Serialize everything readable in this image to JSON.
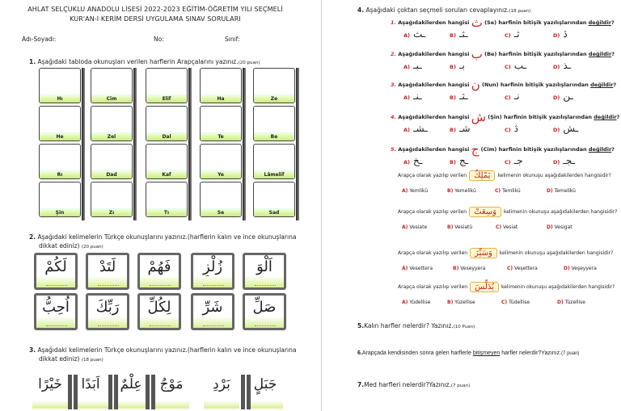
{
  "header": {
    "line1": "AHLAT SELÇUKLU ANADOLU LİSESİ 2022-2023 EĞİTİM-ÖĞRETİM YILI SEÇMELİ",
    "line2": "KUR'AN-I KERİM DERSİ UYGULAMA SINAV SORULARI"
  },
  "student": {
    "name_label": "Adı-Soyadı:",
    "no_label": "No:",
    "class_label": "Sınıf:"
  },
  "q1": {
    "num": "1.",
    "text": "Aşağıdaki tabloda okunuşları verilen harflerin Arapçalarını yazınız.",
    "points": "(20 puan)",
    "columns": [
      [
        "Hı",
        "He",
        "Rı",
        "Şin"
      ],
      [
        "Cim",
        "Zel",
        "Dad",
        "Zı"
      ],
      [
        "Elif",
        "Dal",
        "Kaf",
        "Tı"
      ],
      [
        "Ha",
        "Te",
        "Ye",
        "Se"
      ],
      [
        "Ze",
        "Be",
        "Lâmelif",
        "Sad"
      ]
    ]
  },
  "q2": {
    "num": "2.",
    "text": "Aşağıdaki kelimelerin Türkçe okunuşlarını yazınız.(harflerin kalın ve ince okunuşlarına",
    "text2": "dikkat ediniz)",
    "points": "(20 puan)",
    "row1": [
      "لَكُمْ",
      "لَتَدْ",
      "فَهُمْ",
      "زُلْزِ",
      "اَلْوَ"
    ],
    "row2": [
      "اُحِبُّ",
      "رَبِّكَ",
      "لِكُلِّ",
      "شَرِّ",
      "صَلِّ"
    ]
  },
  "q3": {
    "num": "3.",
    "text": "Aşağıdaki kelimelerin Türkçe okunuşlarını yazınız.(harflerin kalın ve ince okunuşlarına",
    "text2": "dikkat ediniz)",
    "points": "(18 puan)",
    "words": [
      "خَيْرًا",
      "اَبَدًا",
      "عِلْمٌ",
      "مَوْجُ",
      "بَرْدِ",
      "جَبَلٍ"
    ]
  },
  "q4": {
    "num": "4.",
    "text": "Aşağıdaki çoktan seçmeli soruları cevaplayınız.",
    "points": "(18 puan)",
    "sub": [
      {
        "n": "1.",
        "pre": "Aşağıdakilerden hangisi",
        "letter": "ث",
        "post": "(Se) harfinin bitişik yazılışlarından",
        "neg": "değildir",
        "q": "?",
        "opts": [
          [
            "A)",
            "ـث"
          ],
          [
            "B)",
            "ـثـ"
          ],
          [
            "C)",
            "ثـ"
          ],
          [
            "D)",
            "ڎ"
          ]
        ]
      },
      {
        "n": "2.",
        "pre": "Aşağıdakilerden hangisi",
        "letter": "ب",
        "post": "(Be) harfinin bitişik yazılışlarından",
        "neg": "değildir",
        "q": "?",
        "opts": [
          [
            "A)",
            "ـبـ"
          ],
          [
            "B)",
            "بـ"
          ],
          [
            "C)",
            "ـب"
          ],
          [
            "D)",
            "ـذ"
          ]
        ]
      },
      {
        "n": "3.",
        "pre": "Aşağıdakilerden hangisi",
        "letter": "ن",
        "post": "(Nun) harfinin bitişik yazılışlarından",
        "neg": "değildir",
        "q": "?",
        "opts": [
          [
            "A)",
            "ـنـ"
          ],
          [
            "B)",
            "ـثـ"
          ],
          [
            "C)",
            "نـ"
          ],
          [
            "D)",
            "ـن"
          ]
        ]
      },
      {
        "n": "4.",
        "pre": "Aşağıdakilerden hangisi",
        "letter": "ش",
        "post": "(Şin) harfinin bitişik yazılışlarından",
        "neg": "değildir",
        "q": "?",
        "opts": [
          [
            "A)",
            "ـشـ"
          ],
          [
            "B)",
            "شـ"
          ],
          [
            "C)",
            "ڎ"
          ],
          [
            "D)",
            "ـش"
          ]
        ]
      },
      {
        "n": "5.",
        "pre": "Aşağıdakilerden hangisi",
        "letter": "ج",
        "post": "(Cim) harfinin bitişik yazılışlarından",
        "neg": "değildir",
        "q": "?",
        "opts": [
          [
            "A)",
            "ـخ"
          ],
          [
            "B)",
            "ـج"
          ],
          [
            "C)",
            "جـ"
          ],
          [
            "D)",
            "ـجـ"
          ]
        ]
      }
    ],
    "reading": [
      {
        "pre": "Arapça olarak yazılıp verilen",
        "word": "يَمْلِكُ",
        "post": "kelimenin okunuşu aşağıdakilerden hangisidir?",
        "opts": [
          [
            "A)",
            "Yemlikü"
          ],
          [
            "B)",
            "Yemelikü"
          ],
          [
            "C)",
            "Temlikü"
          ],
          [
            "D)",
            "Temelikü"
          ]
        ]
      },
      {
        "pre": "Arapça olarak yazılıp verilen",
        "word": "وَسِعَتْ",
        "post": "kelimenin okunuşu aşağıdakilerden hangisidir?",
        "opts": [
          [
            "A)",
            "Vesiate"
          ],
          [
            "B)",
            "Vesiatü"
          ],
          [
            "C)",
            "Vesiat"
          ],
          [
            "D)",
            "Vesigat"
          ]
        ]
      },
      {
        "pre": "Arapça olarak yazılışı verilen",
        "word": "وَسَيِّرَ",
        "post": "kelimenin okunuşu aşağıdakilerden hangisidir?",
        "opts": [
          [
            "A)",
            "Vesettera"
          ],
          [
            "B)",
            "Veseyyera"
          ],
          [
            "C)",
            "Veşettera"
          ],
          [
            "D)",
            "Veşeyyera"
          ]
        ]
      },
      {
        "pre": "Arapça olarak yazılışı verilen",
        "word": "يُدَلِّسَ",
        "post": "kelimenin okunuşu aşağıdakilerden hangisidir?",
        "opts": [
          [
            "A)",
            "Yüdellise"
          ],
          [
            "B)",
            "Yüzellise"
          ],
          [
            "C)",
            "Tüdellise"
          ],
          [
            "D)",
            "Tüzellise"
          ]
        ]
      }
    ]
  },
  "q5": {
    "num": "5.",
    "text": "Kalın harfler nelerdir? Yazınız.",
    "points": "(10 Puan)"
  },
  "q6": {
    "num": "6.",
    "text": "Arapçada kendisinden sonra gelen harflerle",
    "under": "bitişmeyen",
    "text2": "harfler nelerdir?Yazınız.",
    "points": "(7 puan)"
  },
  "q7": {
    "num": "7.",
    "text": "Med harfleri nelerdir?Yazınız.",
    "points": "(7 puan)"
  }
}
